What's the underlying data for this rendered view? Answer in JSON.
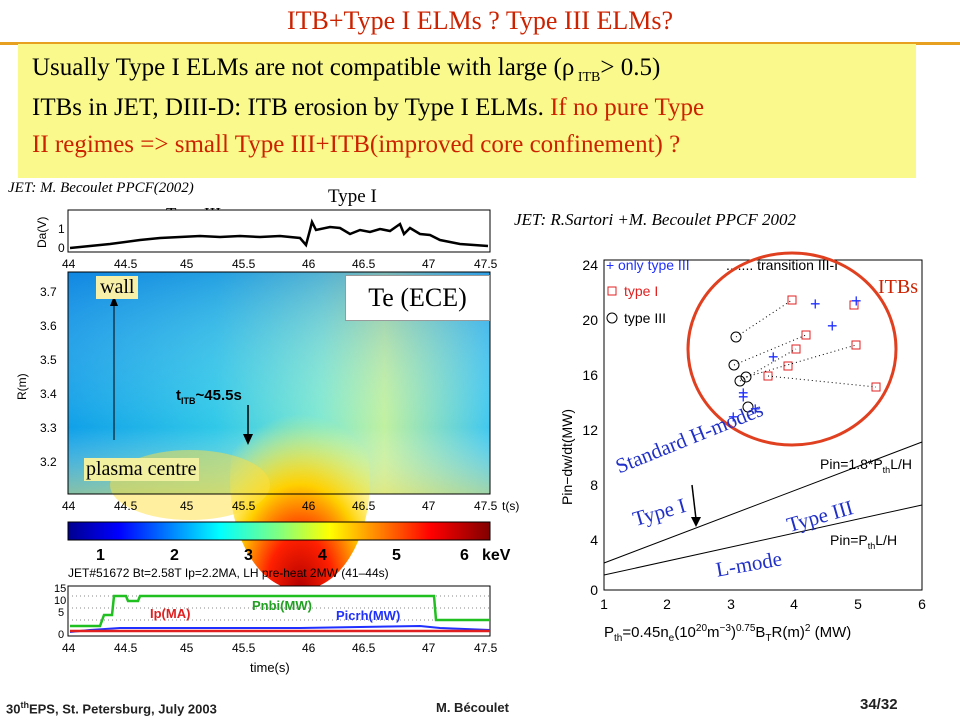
{
  "slide": {
    "title": "ITB+Type I ELMs ? Type III ELMs?",
    "box_line1_a": "Usually Type I ELMs are not compatible with large (",
    "box_rho": "ρ",
    "box_sub": " ITB",
    "box_line1_b": "> 0.5)",
    "box_line2_black": "ITBs in JET, DIII-D: ITB erosion by Type I ELMs. ",
    "box_line2_red": "If no pure Type",
    "box_line3_red": "II regimes => small Type III+ITB(improved core confinement) ?",
    "accent_color": "#cc2200",
    "rule_color": "#e8a020",
    "box_color": "#fafa8c"
  },
  "left_figure": {
    "source": "JET: M. Becoulet PPCF(2002)",
    "type1_label": "Type I",
    "type3_label": "Type III",
    "da_ylabel": "Da(V)",
    "da_yticks": [
      "1",
      "0"
    ],
    "time_ticks": [
      "44",
      "44.5",
      "45",
      "45.5",
      "46",
      "46.5",
      "47",
      "47.5"
    ],
    "time_unit": "t(s)",
    "r_ylabel": "R(m)",
    "r_ticks": [
      "3.7",
      "3.6",
      "3.5",
      "3.4",
      "3.3",
      "3.2"
    ],
    "wall_label": "wall",
    "plasma_label": "plasma centre",
    "te_label": "Te (ECE)",
    "titb_t": "t",
    "titb_sub": "ITB",
    "titb_val": "~45.5s",
    "colorbar_ticks": [
      "1",
      "2",
      "3",
      "4",
      "5",
      "6"
    ],
    "colorbar_unit": "keV",
    "shot_info": "JET#51672 Bt=2.58T  Ip=2.2MA, LH pre-heat 2MW (41–44s)",
    "bottom_yticks": [
      "15",
      "10",
      "5",
      "0"
    ],
    "ip_label": "Ip(MA)",
    "pnbi_label": "Pnbi(MW)",
    "picrh_label": "Picrh(MW)",
    "bottom_xlabel": "time(s)"
  },
  "right_figure": {
    "source": "JET: R.Sartori +M. Becoulet PPCF 2002",
    "itbs_label": "ITBs",
    "legend_plus": "only type III",
    "legend_square": "type I",
    "legend_circle": "type III",
    "legend_dots": "....... transition  III-I",
    "y_ticks": [
      "24",
      "20",
      "16",
      "12",
      "8",
      "4",
      "0"
    ],
    "x_ticks": [
      "1",
      "2",
      "3",
      "4",
      "5",
      "6"
    ],
    "ylabel": "Pin−dw/dt(MW)",
    "xlabel_a": "P",
    "xlabel_sub": "th",
    "xlabel_b": "=0.45n",
    "xlabel_c": "(10",
    "xlabel_d": "20",
    "xlabel_e": "m",
    "xlabel_f": "−3",
    "xlabel_g": ")",
    "xlabel_h": "0.75",
    "xlabel_i": "B",
    "xlabel_j": "T",
    "xlabel_k": "R(m)",
    "xlabel_l": "2",
    "xlabel_m": " (MW)",
    "line1_label": "Pin=1.8*P",
    "line1_sub": "th",
    "line1_tail": "L/H",
    "line2_label": "Pin=P",
    "line2_sub": "th",
    "line2_tail": "L/H",
    "standard_h": "Standard H-modes",
    "type1": "Type I",
    "type3": "Type III",
    "lmode": "L-mode"
  },
  "footer": {
    "conf_a": "30",
    "conf_sup": "th",
    "conf_b": "EPS, St. Petersburg, July 2003",
    "author": "M. Bécoulet",
    "page": "34/32"
  }
}
